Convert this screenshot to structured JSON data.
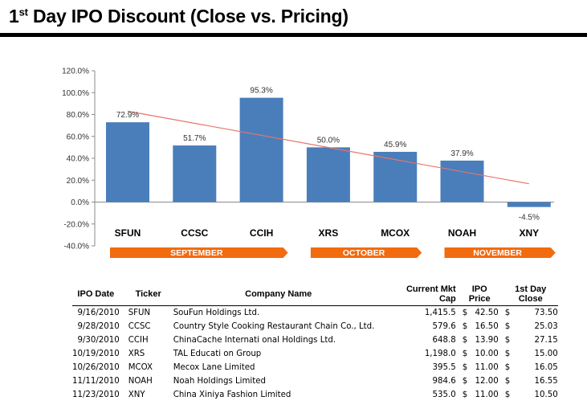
{
  "page": {
    "title_main": "1",
    "title_sup": "st",
    "title_rest": " Day IPO Discount (Close vs. Pricing)"
  },
  "chart_data": {
    "type": "bar",
    "title": "",
    "categories": [
      "SFUN",
      "CCSC",
      "CCIH",
      "XRS",
      "MCOX",
      "NOAH",
      "XNY"
    ],
    "values": [
      72.9,
      51.7,
      95.3,
      50.0,
      45.9,
      37.9,
      -4.5
    ],
    "value_labels": [
      "72.9%",
      "51.7%",
      "95.3%",
      "50.0%",
      "45.9%",
      "37.9%",
      "-4.5%"
    ],
    "ylim": [
      -40,
      120
    ],
    "yticks": [
      120,
      100,
      80,
      60,
      40,
      20,
      0,
      -20,
      -40
    ],
    "ytick_labels": [
      "120.0%",
      "100.0%",
      "80.0%",
      "60.0%",
      "40.0%",
      "20.0%",
      "0.0%",
      "-20.0%",
      "-40.0%"
    ],
    "trendline": true,
    "grid": false,
    "legend": "none",
    "month_banners": [
      {
        "label": "SEPTEMBER",
        "first": 0,
        "last": 2
      },
      {
        "label": "OCTOBER",
        "first": 3,
        "last": 4
      },
      {
        "label": "NOVEMBER",
        "first": 5,
        "last": 6
      }
    ],
    "colors": {
      "bar": "#4a7ebb",
      "trendline": "#e8746b",
      "banner": "#f26b0f",
      "banner_text": "#ffffff"
    }
  },
  "table": {
    "headers": {
      "date": "IPO Date",
      "ticker": "Ticker",
      "company": "Company Name",
      "mktcap": "Current Mkt Cap",
      "price": "IPO Price",
      "close": "1st Day Close"
    },
    "rows": [
      {
        "date": "9/16/2010",
        "ticker": "SFUN",
        "company": "SouFun Holdings Ltd.",
        "mktcap": "1,415.5",
        "price": "42.50",
        "close": "73.50"
      },
      {
        "date": "9/28/2010",
        "ticker": "CCSC",
        "company": "Country Style Cooking Restaurant Chain Co., Ltd.",
        "mktcap": "579.6",
        "price": "16.50",
        "close": "25.03"
      },
      {
        "date": "9/30/2010",
        "ticker": "CCIH",
        "company": "ChinaCache Internati onal Holdings Ltd.",
        "mktcap": "648.8",
        "price": "13.90",
        "close": "27.15"
      },
      {
        "date": "10/19/2010",
        "ticker": "XRS",
        "company": "TAL Educati on Group",
        "mktcap": "1,198.0",
        "price": "10.00",
        "close": "15.00"
      },
      {
        "date": "10/26/2010",
        "ticker": "MCOX",
        "company": "Mecox Lane Limited",
        "mktcap": "395.5",
        "price": "11.00",
        "close": "16.05"
      },
      {
        "date": "11/11/2010",
        "ticker": "NOAH",
        "company": "Noah Holdings Limited",
        "mktcap": "984.6",
        "price": "12.00",
        "close": "16.55"
      },
      {
        "date": "11/23/2010",
        "ticker": "XNY",
        "company": "China Xiniya Fashion Limited",
        "mktcap": "535.0",
        "price": "11.00",
        "close": "10.50"
      }
    ],
    "currency_symbol": "$"
  }
}
